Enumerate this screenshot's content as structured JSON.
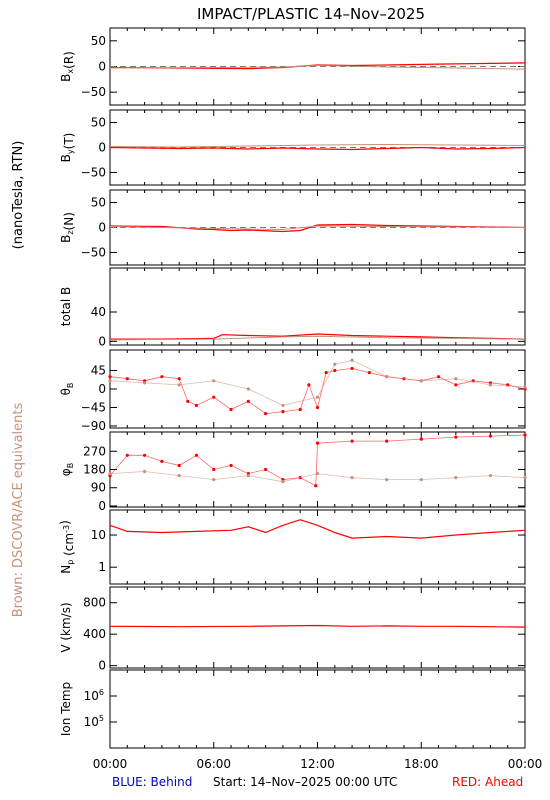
{
  "title": "IMPACT/PLASTIC   14–Nov–2025",
  "left_label": "(nanoTesla, RTN)",
  "brown_label": "Brown: DSCOVR/ACE equivalents",
  "footer": {
    "blue": "BLUE: Behind",
    "start": "Start: 14–Nov–2025 00:00 UTC",
    "red": "RED: Ahead"
  },
  "colors": {
    "red": "#ff0000",
    "brown": "#c8907a",
    "blue": "#0000cc",
    "axis": "#000000"
  },
  "chart_data": [
    {
      "type": "line",
      "id": "bx",
      "ylabel": "B_x(R)",
      "ylim": [
        -75,
        75
      ],
      "yticks": [
        {
          "v": 50,
          "t": "50"
        },
        {
          "v": 0,
          "t": "0"
        },
        {
          "v": -50,
          "t": "−50"
        }
      ],
      "zero_line": true,
      "series": [
        {
          "color": "red",
          "values": [
            [
              0,
              -2
            ],
            [
              4,
              -3
            ],
            [
              8,
              -4
            ],
            [
              10,
              -2
            ],
            [
              12,
              3
            ],
            [
              14,
              2
            ],
            [
              16,
              3
            ],
            [
              18,
              4
            ],
            [
              20,
              5
            ],
            [
              22,
              6
            ],
            [
              24,
              7
            ]
          ]
        },
        {
          "color": "brown",
          "values": [
            [
              0,
              -3
            ],
            [
              6,
              -2
            ],
            [
              10,
              -1
            ],
            [
              12,
              2
            ],
            [
              16,
              -1
            ],
            [
              20,
              -3
            ],
            [
              24,
              -5
            ]
          ]
        }
      ]
    },
    {
      "type": "line",
      "id": "by",
      "ylabel": "B_y(T)",
      "ylim": [
        -75,
        75
      ],
      "yticks": [
        {
          "v": 50,
          "t": "50"
        },
        {
          "v": 0,
          "t": "0"
        },
        {
          "v": -50,
          "t": "−50"
        }
      ],
      "zero_line": true,
      "series": [
        {
          "color": "red",
          "values": [
            [
              0,
              0
            ],
            [
              2,
              -1
            ],
            [
              4,
              -2
            ],
            [
              6,
              -1
            ],
            [
              8,
              -3
            ],
            [
              10,
              -1
            ],
            [
              12,
              -3
            ],
            [
              14,
              -4
            ],
            [
              16,
              -2
            ],
            [
              18,
              0
            ],
            [
              20,
              -3
            ],
            [
              22,
              -2
            ],
            [
              24,
              0
            ]
          ]
        },
        {
          "color": "brown",
          "values": [
            [
              0,
              2
            ],
            [
              4,
              1
            ],
            [
              8,
              3
            ],
            [
              10,
              4
            ],
            [
              12,
              5
            ],
            [
              16,
              6
            ],
            [
              20,
              5
            ],
            [
              24,
              4
            ]
          ]
        }
      ]
    },
    {
      "type": "line",
      "id": "bz",
      "ylabel": "B_z(N)",
      "ylim": [
        -75,
        75
      ],
      "yticks": [
        {
          "v": 50,
          "t": "50"
        },
        {
          "v": 0,
          "t": "0"
        },
        {
          "v": -50,
          "t": "−50"
        }
      ],
      "zero_line": true,
      "series": [
        {
          "color": "red",
          "values": [
            [
              0,
              3
            ],
            [
              3,
              2
            ],
            [
              5,
              -3
            ],
            [
              6,
              -4
            ],
            [
              7,
              -6
            ],
            [
              8,
              -5
            ],
            [
              10,
              -8
            ],
            [
              11,
              -6
            ],
            [
              12,
              5
            ],
            [
              14,
              6
            ],
            [
              16,
              4
            ],
            [
              18,
              3
            ],
            [
              20,
              2
            ],
            [
              22,
              1
            ],
            [
              24,
              0
            ]
          ]
        },
        {
          "color": "brown",
          "values": [
            [
              0,
              2
            ],
            [
              6,
              -2
            ],
            [
              10,
              -4
            ],
            [
              12,
              3
            ],
            [
              16,
              2
            ],
            [
              20,
              1
            ],
            [
              24,
              0
            ]
          ]
        }
      ]
    },
    {
      "type": "line",
      "id": "btot",
      "ylabel": "total B",
      "ylim": [
        -5,
        100
      ],
      "yticks": [
        {
          "v": 40,
          "t": "40"
        },
        {
          "v": 0,
          "t": "0"
        }
      ],
      "zero_line": false,
      "series": [
        {
          "color": "red",
          "values": [
            [
              0,
              3
            ],
            [
              3,
              3
            ],
            [
              6,
              4
            ],
            [
              6.5,
              9
            ],
            [
              8,
              8
            ],
            [
              10,
              7
            ],
            [
              12,
              10
            ],
            [
              14,
              8
            ],
            [
              16,
              7
            ],
            [
              18,
              6
            ],
            [
              20,
              5
            ],
            [
              22,
              4
            ],
            [
              24,
              3
            ]
          ]
        },
        {
          "color": "brown",
          "values": [
            [
              0,
              2
            ],
            [
              6,
              3
            ],
            [
              10,
              6
            ],
            [
              12,
              7
            ],
            [
              16,
              5
            ],
            [
              20,
              4
            ],
            [
              24,
              3
            ]
          ]
        }
      ]
    },
    {
      "type": "scatter",
      "id": "theta",
      "ylabel": "θ_B",
      "ylim": [
        -95,
        95
      ],
      "yticks": [
        {
          "v": 45,
          "t": "45"
        },
        {
          "v": 0,
          "t": "0"
        },
        {
          "v": -45,
          "t": "−45"
        },
        {
          "v": -90,
          "t": "−90"
        }
      ],
      "zero_line": false,
      "series": [
        {
          "color": "red",
          "values": [
            [
              0,
              30
            ],
            [
              1,
              25
            ],
            [
              2,
              20
            ],
            [
              3,
              30
            ],
            [
              4,
              25
            ],
            [
              4.5,
              -30
            ],
            [
              5,
              -40
            ],
            [
              6,
              -20
            ],
            [
              7,
              -50
            ],
            [
              8,
              -30
            ],
            [
              9,
              -60
            ],
            [
              10,
              -55
            ],
            [
              11,
              -50
            ],
            [
              11.5,
              10
            ],
            [
              12,
              -45
            ],
            [
              12.5,
              40
            ],
            [
              13,
              45
            ],
            [
              14,
              50
            ],
            [
              15,
              40
            ],
            [
              16,
              30
            ],
            [
              17,
              25
            ],
            [
              18,
              20
            ],
            [
              19,
              30
            ],
            [
              20,
              10
            ],
            [
              21,
              20
            ],
            [
              22,
              15
            ],
            [
              23,
              10
            ],
            [
              24,
              0
            ]
          ]
        },
        {
          "color": "brown",
          "values": [
            [
              0,
              20
            ],
            [
              2,
              15
            ],
            [
              4,
              10
            ],
            [
              6,
              20
            ],
            [
              8,
              0
            ],
            [
              10,
              -40
            ],
            [
              12,
              -20
            ],
            [
              13,
              60
            ],
            [
              14,
              70
            ],
            [
              16,
              30
            ],
            [
              18,
              20
            ],
            [
              20,
              25
            ],
            [
              22,
              10
            ],
            [
              24,
              5
            ]
          ]
        }
      ]
    },
    {
      "type": "scatter",
      "id": "phi",
      "ylabel": "φ_B",
      "ylim": [
        -5,
        365
      ],
      "yticks": [
        {
          "v": 270,
          "t": "270"
        },
        {
          "v": 180,
          "t": "180"
        },
        {
          "v": 90,
          "t": "90"
        },
        {
          "v": 0,
          "t": "0"
        }
      ],
      "zero_line": false,
      "series": [
        {
          "color": "red",
          "values": [
            [
              0,
              150
            ],
            [
              1,
              250
            ],
            [
              2,
              250
            ],
            [
              3,
              220
            ],
            [
              4,
              200
            ],
            [
              5,
              250
            ],
            [
              6,
              180
            ],
            [
              7,
              200
            ],
            [
              8,
              160
            ],
            [
              9,
              180
            ],
            [
              10,
              130
            ],
            [
              11,
              140
            ],
            [
              11.9,
              100
            ],
            [
              12,
              310
            ],
            [
              14,
              320
            ],
            [
              16,
              320
            ],
            [
              18,
              330
            ],
            [
              20,
              340
            ],
            [
              22,
              345
            ],
            [
              24,
              350
            ]
          ]
        },
        {
          "color": "brown",
          "values": [
            [
              0,
              160
            ],
            [
              2,
              170
            ],
            [
              4,
              150
            ],
            [
              6,
              130
            ],
            [
              8,
              150
            ],
            [
              10,
              120
            ],
            [
              12,
              160
            ],
            [
              14,
              140
            ],
            [
              16,
              130
            ],
            [
              18,
              130
            ],
            [
              20,
              140
            ],
            [
              22,
              150
            ],
            [
              24,
              140
            ]
          ]
        }
      ]
    },
    {
      "type": "line",
      "id": "np",
      "ylabel": "N_p (cm^-3)",
      "log": true,
      "ylim": [
        0.3,
        60
      ],
      "yticks": [
        {
          "v": 10,
          "t": "10"
        },
        {
          "v": 1,
          "t": "1"
        }
      ],
      "zero_line": false,
      "series": [
        {
          "color": "red",
          "values": [
            [
              0,
              20
            ],
            [
              1,
              13
            ],
            [
              3,
              12
            ],
            [
              5,
              13
            ],
            [
              7,
              14
            ],
            [
              8,
              18
            ],
            [
              9,
              12
            ],
            [
              10,
              20
            ],
            [
              11,
              30
            ],
            [
              12,
              20
            ],
            [
              13,
              12
            ],
            [
              14,
              8
            ],
            [
              16,
              9
            ],
            [
              18,
              8
            ],
            [
              20,
              10
            ],
            [
              22,
              12
            ],
            [
              24,
              14
            ]
          ]
        }
      ]
    },
    {
      "type": "line",
      "id": "v",
      "ylabel": "V (km/s)",
      "ylim": [
        -30,
        1000
      ],
      "yticks": [
        {
          "v": 800,
          "t": "800"
        },
        {
          "v": 400,
          "t": "400"
        },
        {
          "v": 0,
          "t": "0"
        }
      ],
      "zero_line": false,
      "series": [
        {
          "color": "red",
          "values": [
            [
              0,
              500
            ],
            [
              4,
              495
            ],
            [
              8,
              500
            ],
            [
              10,
              505
            ],
            [
              12,
              510
            ],
            [
              14,
              500
            ],
            [
              16,
              505
            ],
            [
              18,
              500
            ],
            [
              20,
              500
            ],
            [
              22,
              495
            ],
            [
              24,
              490
            ]
          ]
        }
      ]
    },
    {
      "type": "line",
      "id": "temp",
      "ylabel": "Ion Temp",
      "log": true,
      "ylim": [
        10000,
        10000000
      ],
      "yticks": [
        {
          "v": 1000000,
          "t": "10^6"
        },
        {
          "v": 100000,
          "t": "10^5"
        }
      ],
      "zero_line": false,
      "series": []
    }
  ],
  "xaxis": {
    "range": [
      0,
      24
    ],
    "ticks": [
      {
        "v": 0,
        "t": "00:00"
      },
      {
        "v": 6,
        "t": "06:00"
      },
      {
        "v": 12,
        "t": "12:00"
      },
      {
        "v": 18,
        "t": "18:00"
      },
      {
        "v": 24,
        "t": "00:00"
      }
    ]
  }
}
